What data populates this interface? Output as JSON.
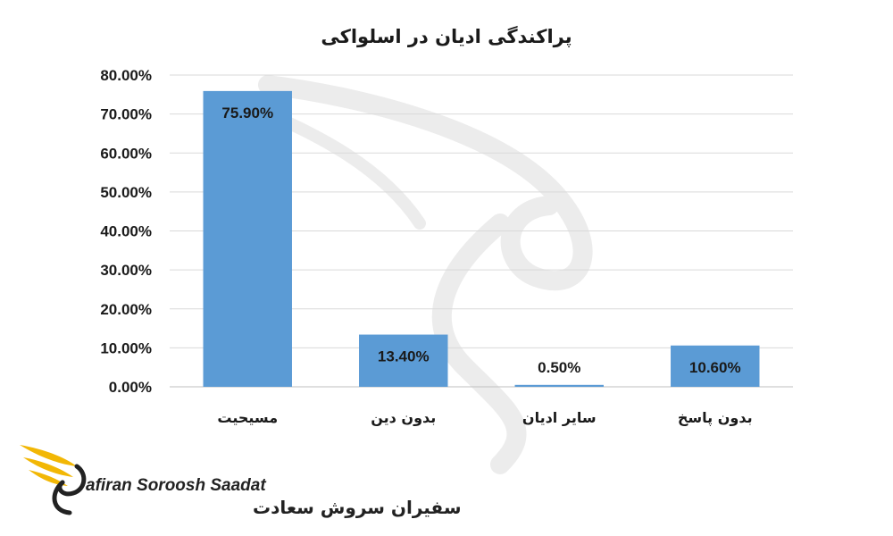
{
  "chart_data": {
    "type": "bar",
    "title": "پراکندگی ادیان در اسلواکی",
    "categories": [
      "مسیحیت",
      "بدون دین",
      "سایر ادیان",
      "بدون پاسخ"
    ],
    "values": [
      75.9,
      13.4,
      0.5,
      10.6
    ],
    "value_labels": [
      "75.90%",
      "13.40%",
      "0.50%",
      "10.60%"
    ],
    "ylim": [
      0,
      80
    ],
    "yticks": [
      "0.00%",
      "10.00%",
      "20.00%",
      "30.00%",
      "40.00%",
      "50.00%",
      "60.00%",
      "70.00%",
      "80.00%"
    ],
    "xlabel": "",
    "ylabel": "",
    "grid": true,
    "bar_color": "#5b9bd5"
  },
  "logo": {
    "name_en": "afiran Soroosh Saadat",
    "name_fa": "سفیران سروش سعادت",
    "colors": {
      "wing": "#f2b705",
      "text": "#222222"
    }
  }
}
